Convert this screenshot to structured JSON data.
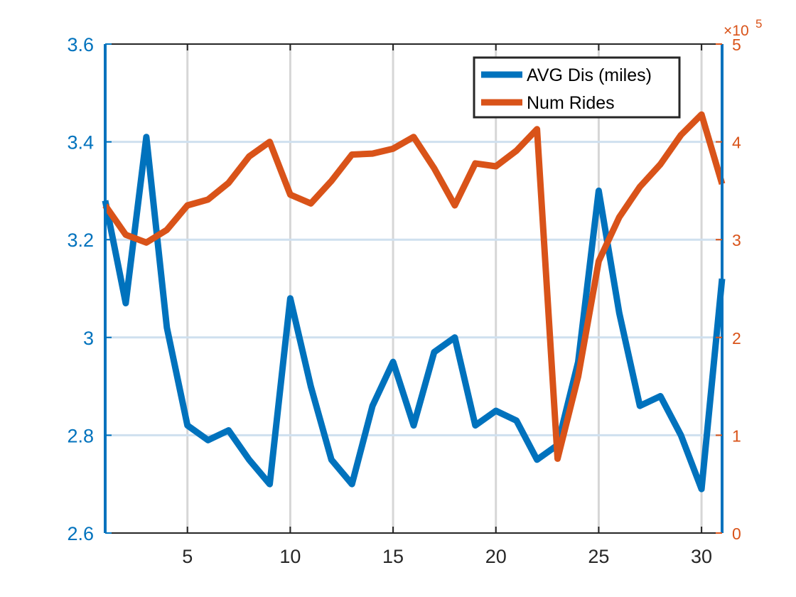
{
  "chart_data": {
    "type": "line",
    "title": "",
    "xlabel": "",
    "x": [
      1,
      2,
      3,
      4,
      5,
      6,
      7,
      8,
      9,
      10,
      11,
      12,
      13,
      14,
      15,
      16,
      17,
      18,
      19,
      20,
      21,
      22,
      23,
      24,
      25,
      26,
      27,
      28,
      29,
      30,
      31
    ],
    "xlim": [
      1,
      31
    ],
    "xticks": [
      5,
      10,
      15,
      20,
      25,
      30
    ],
    "grid": true,
    "legend": {
      "placement": "top-right",
      "entries": [
        "AVG Dis (miles)",
        "Num Rides"
      ]
    },
    "series": [
      {
        "name": "AVG Dis (miles)",
        "axis": "left",
        "color": "#0072BD",
        "values": [
          3.28,
          3.07,
          3.41,
          3.02,
          2.82,
          2.79,
          2.81,
          2.75,
          2.7,
          3.08,
          2.9,
          2.75,
          2.7,
          2.86,
          2.95,
          2.82,
          2.97,
          3.0,
          2.82,
          2.85,
          2.83,
          2.75,
          2.78,
          2.95,
          3.3,
          3.05,
          2.86,
          2.88,
          2.8,
          2.69,
          3.12
        ]
      },
      {
        "name": "Num Rides",
        "axis": "right",
        "color": "#D95319",
        "values": [
          335000,
          305000,
          297000,
          310000,
          335000,
          341000,
          358000,
          385000,
          400000,
          346000,
          337000,
          360000,
          387000,
          388000,
          393000,
          405000,
          373000,
          335000,
          378000,
          375000,
          391000,
          413000,
          76000,
          160000,
          278000,
          323000,
          354000,
          377000,
          407000,
          428000,
          357000
        ]
      }
    ],
    "left_axis": {
      "label": "",
      "ylim": [
        2.6,
        3.6
      ],
      "ticks": [
        2.6,
        2.8,
        3.0,
        3.2,
        3.4,
        3.6
      ],
      "tick_labels": [
        "2.6",
        "2.8",
        "3",
        "3.2",
        "3.4",
        "3.6"
      ],
      "color": "#0072BD"
    },
    "right_axis": {
      "label": "",
      "ylim": [
        0,
        500000
      ],
      "ticks": [
        0,
        100000,
        200000,
        300000,
        400000,
        500000
      ],
      "tick_labels": [
        "0",
        "1",
        "2",
        "3",
        "4",
        "5"
      ],
      "exponent_base": "×10",
      "exponent_power": "5",
      "color": "#D95319"
    }
  }
}
